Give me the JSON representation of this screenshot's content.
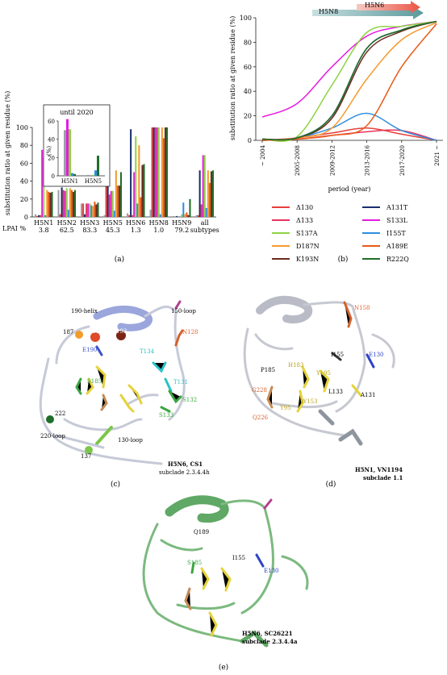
{
  "panel_labels": {
    "a": "(a)",
    "b": "(b)",
    "c": "(c)",
    "d": "(d)",
    "e": "(e)"
  },
  "colors": {
    "d130": "#e8403a",
    "a131t": "#1a2f6e",
    "d133": "#e6345f",
    "s133l": "#e61be0",
    "s137a": "#8ed343",
    "i155t": "#2f8de0",
    "d187n": "#f59a2d",
    "a189e": "#e85a18",
    "k193n": "#6a2a1e",
    "r222q": "#1f6e2a",
    "lpai": "#9aa0a6"
  },
  "chart_data": [
    {
      "type": "bar",
      "title": "",
      "xlabel": "",
      "ylabel": "substitution ratio at given residue (%)",
      "ylim": [
        0,
        100
      ],
      "yticks": [
        "0",
        "20",
        "40",
        "60",
        "80",
        "100"
      ],
      "categories": [
        "H5N1",
        "H5N2",
        "H5N3",
        "H5N5",
        "H5N6",
        "H5N8",
        "H5N9",
        "all subtypes"
      ],
      "category_lines": [
        [
          "H5N1"
        ],
        [
          "H5N2"
        ],
        [
          "H5N3"
        ],
        [
          "H5N5"
        ],
        [
          "H5N6"
        ],
        [
          "H5N8"
        ],
        [
          "H5N9"
        ],
        [
          "all",
          "subtypes"
        ]
      ],
      "lpai_row_label": "LPAI %",
      "lpai_values": [
        "3.8",
        "62.5",
        "83.3",
        "45.3",
        "1.3",
        "1.0",
        "79.2",
        ""
      ],
      "series": [
        {
          "key": "lpai",
          "values": [
            3,
            30,
            15,
            2,
            4,
            8,
            1,
            2
          ]
        },
        {
          "key": "d130",
          "values": [
            1,
            3,
            15,
            36,
            2,
            100,
            0,
            2
          ]
        },
        {
          "key": "a131t",
          "values": [
            2,
            33,
            3,
            37,
            98,
            100,
            1,
            52
          ]
        },
        {
          "key": "d133",
          "values": [
            2,
            30,
            15,
            25,
            2,
            100,
            0,
            14
          ]
        },
        {
          "key": "s133l",
          "values": [
            75,
            29,
            15,
            29,
            50,
            100,
            0,
            69
          ]
        },
        {
          "key": "s137a",
          "values": [
            67,
            32,
            15,
            29,
            90,
            100,
            3,
            69
          ]
        },
        {
          "key": "i155t",
          "values": [
            2,
            8,
            13,
            7,
            15,
            3,
            16,
            10
          ]
        },
        {
          "key": "d187n",
          "values": [
            30,
            32,
            12,
            52,
            80,
            100,
            3,
            52
          ]
        },
        {
          "key": "a189e",
          "values": [
            28,
            30,
            17,
            35,
            22,
            88,
            5,
            38
          ]
        },
        {
          "key": "k193n",
          "values": [
            27,
            28,
            14,
            35,
            58,
            100,
            2,
            51
          ]
        },
        {
          "key": "r222q",
          "values": [
            28,
            30,
            16,
            50,
            59,
            100,
            20,
            52
          ]
        }
      ],
      "inset": {
        "title": "until 2020",
        "ylabel": "(%)",
        "ylim": [
          0,
          60
        ],
        "yticks": [
          "0",
          "20",
          "40",
          "60"
        ],
        "categories": [
          "H5N1",
          "H5N5"
        ],
        "series": [
          {
            "key": "lpai",
            "values": [
              50,
              1
            ]
          },
          {
            "key": "s133l",
            "values": [
              62,
              0
            ]
          },
          {
            "key": "s137a",
            "values": [
              51,
              1
            ]
          },
          {
            "key": "i155t",
            "values": [
              3,
              6
            ]
          },
          {
            "key": "r222q",
            "values": [
              2,
              22
            ]
          }
        ]
      }
    },
    {
      "type": "line",
      "title": "",
      "xlabel": "period (year)",
      "ylabel": "substitution ratio at given residue (%)",
      "ylim": [
        0,
        100
      ],
      "yticks": [
        "0",
        "20",
        "40",
        "60",
        "80",
        "100"
      ],
      "categories": [
        "~ 2004",
        "2005-2008",
        "2009-2012",
        "2013-2016",
        "2017-2020",
        "2021 ~"
      ],
      "arrows": [
        {
          "label": "H5N8"
        },
        {
          "label": "H5N6"
        }
      ],
      "series": [
        {
          "key": "d130",
          "name": "Δ130",
          "values": [
            0,
            2,
            6,
            10,
            5,
            0
          ]
        },
        {
          "key": "a131t",
          "name": "A131T",
          "values": [
            1,
            2,
            20,
            75,
            90,
            97
          ]
        },
        {
          "key": "d133",
          "name": "Δ133",
          "values": [
            0,
            1,
            4,
            7,
            8,
            0
          ]
        },
        {
          "key": "s133l",
          "name": "S133L",
          "values": [
            19,
            30,
            60,
            85,
            93,
            97
          ]
        },
        {
          "key": "s137a",
          "name": "S137A",
          "values": [
            1,
            3,
            45,
            88,
            93,
            97
          ]
        },
        {
          "key": "i155t",
          "name": "I155T",
          "values": [
            0,
            2,
            10,
            22,
            8,
            0
          ]
        },
        {
          "key": "d187n",
          "name": "D187N",
          "values": [
            0,
            2,
            10,
            50,
            82,
            96
          ]
        },
        {
          "key": "a189e",
          "name": "A189E",
          "values": [
            0,
            1,
            4,
            12,
            60,
            95
          ]
        },
        {
          "key": "k193n",
          "name": "K193N",
          "values": [
            1,
            2,
            18,
            72,
            89,
            97
          ]
        },
        {
          "key": "r222q",
          "name": "R222Q",
          "values": [
            1,
            2,
            20,
            75,
            90,
            97
          ]
        }
      ]
    }
  ],
  "structures": {
    "c": {
      "caption": [
        "H5N6, CS1",
        "subclade 2.3.4.4h"
      ],
      "labels": [
        "190-helix",
        "150-loop",
        "187",
        "189",
        "193",
        "E190",
        "N128",
        "T134",
        "T131",
        "S185",
        "S132",
        "S133",
        "222",
        "137",
        "220-loop",
        "130-loop"
      ]
    },
    "d": {
      "caption": [
        "H5N1, VN1194",
        "subclade 1.1"
      ],
      "labels": [
        "N158",
        "I155",
        "E130",
        "P185",
        "H183",
        "Y195",
        "G228",
        "A131",
        "Q226",
        "Y95",
        "W153",
        "L133"
      ]
    },
    "e": {
      "caption": [
        "H5N6, SC26221",
        "subclade 2.3.4.4a"
      ],
      "labels": [
        "Q189",
        "I155",
        "S185",
        "E130"
      ]
    }
  }
}
